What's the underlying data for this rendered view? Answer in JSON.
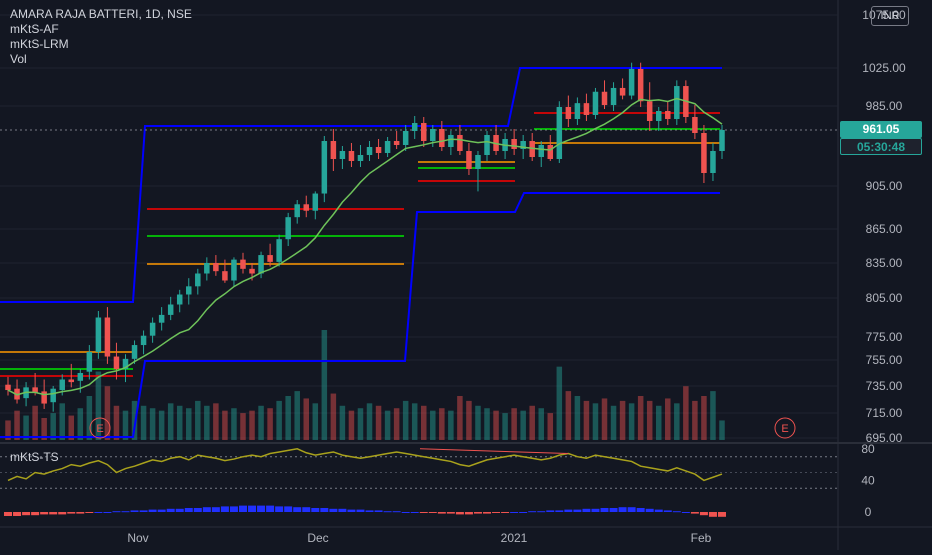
{
  "legend": {
    "symbol": "AMARA RAJA BATTERI, 1D, NSE",
    "indicator_af": "mKtS-AF",
    "indicator_lrm": "mKtS-LRM",
    "indicator_vol": "Vol"
  },
  "subpane": {
    "label": "mKtS-TS"
  },
  "currency": "INR",
  "last_price": "961.05",
  "countdown": "05:30:48",
  "earnings_marker": "E",
  "colors": {
    "up": "#26a69a",
    "down": "#ef5350",
    "band": "#0000ff",
    "ma": "#6ec25a",
    "level_red": "#ff0000",
    "level_green": "#00e600",
    "level_orange": "#ff9800",
    "oscillator": "#a9a21c",
    "trend": "#ef5350"
  },
  "chart_data": {
    "type": "candlestick",
    "yaxis": {
      "ticks": [
        "1075.00",
        "1025.00",
        "985.00",
        "905.00",
        "865.00",
        "835.00",
        "805.00",
        "775.00",
        "755.00",
        "735.00",
        "715.00",
        "695.00"
      ]
    },
    "xaxis": {
      "ticks": [
        "Nov",
        "Dec",
        "2021",
        "Feb"
      ]
    },
    "subaxis": {
      "ticks": [
        "80",
        "40",
        "0"
      ]
    },
    "candles": [
      [
        736,
        742,
        728,
        732
      ],
      [
        733,
        740,
        722,
        725
      ],
      [
        726,
        738,
        720,
        734
      ],
      [
        734,
        745,
        728,
        730
      ],
      [
        731,
        740,
        718,
        722
      ],
      [
        723,
        735,
        716,
        733
      ],
      [
        732,
        744,
        728,
        740
      ],
      [
        740,
        752,
        734,
        738
      ],
      [
        739,
        748,
        730,
        745
      ],
      [
        746,
        768,
        740,
        762
      ],
      [
        762,
        795,
        756,
        790
      ],
      [
        790,
        798,
        752,
        758
      ],
      [
        758,
        770,
        740,
        748
      ],
      [
        748,
        760,
        738,
        756
      ],
      [
        756,
        772,
        752,
        768
      ],
      [
        768,
        780,
        760,
        776
      ],
      [
        776,
        790,
        770,
        786
      ],
      [
        786,
        798,
        780,
        792
      ],
      [
        792,
        806,
        788,
        800
      ],
      [
        800,
        812,
        794,
        808
      ],
      [
        808,
        822,
        800,
        815
      ],
      [
        815,
        830,
        808,
        826
      ],
      [
        826,
        840,
        820,
        835
      ],
      [
        835,
        842,
        824,
        828
      ],
      [
        828,
        838,
        818,
        820
      ],
      [
        820,
        840,
        815,
        838
      ],
      [
        838,
        844,
        826,
        830
      ],
      [
        830,
        835,
        820,
        826
      ],
      [
        826,
        845,
        822,
        842
      ],
      [
        842,
        852,
        832,
        836
      ],
      [
        836,
        860,
        832,
        856
      ],
      [
        856,
        880,
        850,
        876
      ],
      [
        876,
        892,
        870,
        888
      ],
      [
        888,
        896,
        876,
        882
      ],
      [
        882,
        900,
        874,
        898
      ],
      [
        898,
        955,
        890,
        950
      ],
      [
        950,
        962,
        920,
        932
      ],
      [
        932,
        945,
        922,
        940
      ],
      [
        940,
        948,
        924,
        930
      ],
      [
        930,
        946,
        924,
        936
      ],
      [
        936,
        950,
        930,
        944
      ],
      [
        944,
        952,
        932,
        938
      ],
      [
        938,
        954,
        934,
        950
      ],
      [
        950,
        960,
        942,
        946
      ],
      [
        946,
        966,
        940,
        960
      ],
      [
        960,
        975,
        952,
        968
      ],
      [
        968,
        974,
        944,
        950
      ],
      [
        950,
        966,
        944,
        962
      ],
      [
        962,
        970,
        940,
        944
      ],
      [
        944,
        960,
        936,
        956
      ],
      [
        956,
        966,
        936,
        940
      ],
      [
        940,
        948,
        916,
        922
      ],
      [
        922,
        940,
        900,
        936
      ],
      [
        936,
        960,
        930,
        956
      ],
      [
        956,
        966,
        936,
        940
      ],
      [
        940,
        958,
        932,
        952
      ],
      [
        952,
        962,
        936,
        942
      ],
      [
        942,
        956,
        932,
        950
      ],
      [
        950,
        958,
        930,
        934
      ],
      [
        934,
        950,
        924,
        946
      ],
      [
        946,
        956,
        930,
        932
      ],
      [
        932,
        990,
        928,
        984
      ],
      [
        984,
        996,
        964,
        972
      ],
      [
        972,
        994,
        966,
        988
      ],
      [
        988,
        998,
        970,
        976
      ],
      [
        976,
        1004,
        972,
        1000
      ],
      [
        1000,
        1012,
        982,
        986
      ],
      [
        986,
        1010,
        980,
        1004
      ],
      [
        1004,
        1014,
        992,
        996
      ],
      [
        996,
        1030,
        992,
        1024
      ],
      [
        1024,
        1030,
        984,
        990
      ],
      [
        990,
        1010,
        960,
        970
      ],
      [
        970,
        984,
        960,
        980
      ],
      [
        980,
        990,
        966,
        972
      ],
      [
        972,
        1012,
        966,
        1006
      ],
      [
        1006,
        1012,
        968,
        974
      ],
      [
        974,
        986,
        952,
        958
      ],
      [
        958,
        966,
        908,
        918
      ],
      [
        918,
        948,
        910,
        940
      ],
      [
        940,
        966,
        932,
        961
      ]
    ],
    "volume": [
      8,
      12,
      10,
      14,
      9,
      11,
      15,
      10,
      13,
      18,
      28,
      22,
      14,
      12,
      16,
      14,
      13,
      12,
      15,
      14,
      13,
      16,
      14,
      15,
      12,
      13,
      11,
      12,
      14,
      13,
      16,
      18,
      20,
      17,
      15,
      45,
      19,
      14,
      12,
      13,
      15,
      14,
      12,
      13,
      16,
      15,
      14,
      12,
      13,
      12,
      18,
      16,
      14,
      13,
      12,
      11,
      13,
      12,
      14,
      13,
      11,
      30,
      20,
      18,
      16,
      15,
      17,
      14,
      16,
      15,
      18,
      16,
      14,
      17,
      15,
      22,
      16,
      18,
      20,
      8
    ],
    "oscillator": [
      40,
      45,
      42,
      50,
      48,
      52,
      55,
      60,
      58,
      62,
      65,
      60,
      50,
      55,
      58,
      62,
      66,
      64,
      68,
      70,
      66,
      72,
      70,
      68,
      65,
      67,
      70,
      72,
      70,
      74,
      76,
      78,
      80,
      75,
      72,
      74,
      76,
      72,
      70,
      68,
      70,
      72,
      74,
      76,
      74,
      72,
      70,
      68,
      66,
      64,
      60,
      58,
      62,
      66,
      68,
      70,
      72,
      70,
      68,
      66,
      68,
      72,
      74,
      70,
      68,
      72,
      70,
      68,
      66,
      64,
      58,
      56,
      54,
      52,
      56,
      52,
      48,
      40,
      44,
      48
    ],
    "histogram": [
      -5,
      -5,
      -4,
      -4,
      -3,
      -3,
      -3,
      -2,
      -2,
      -1,
      0,
      0,
      1,
      1,
      2,
      2,
      3,
      3,
      4,
      4,
      5,
      5,
      6,
      6,
      7,
      7,
      8,
      8,
      8,
      8,
      7,
      7,
      6,
      6,
      5,
      5,
      4,
      4,
      3,
      3,
      2,
      2,
      1,
      1,
      0,
      0,
      -1,
      -1,
      -2,
      -2,
      -3,
      -3,
      -2,
      -2,
      -1,
      -1,
      0,
      0,
      1,
      1,
      2,
      2,
      3,
      3,
      4,
      4,
      5,
      5,
      6,
      6,
      5,
      4,
      3,
      2,
      1,
      0,
      -2,
      -4,
      -6,
      -6
    ]
  }
}
